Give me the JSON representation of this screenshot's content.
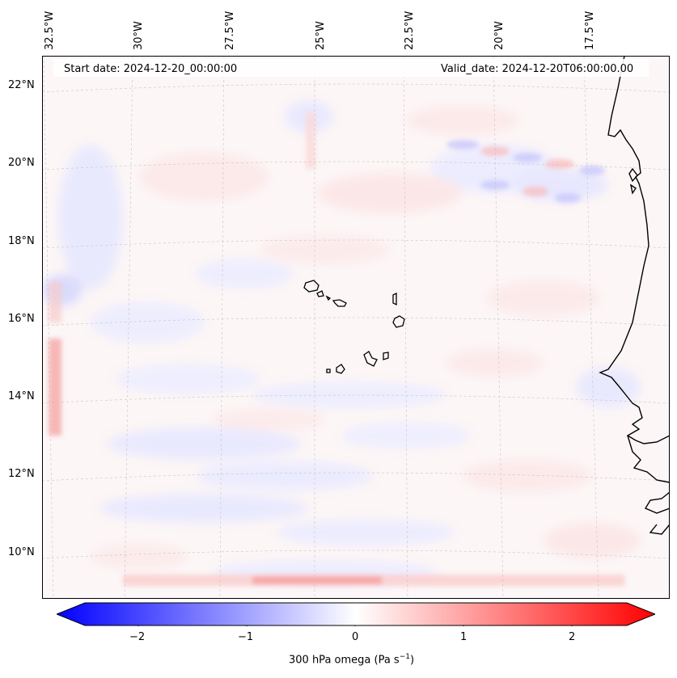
{
  "map": {
    "start_label": "Start date: 2024-12-20_00:00:00",
    "valid_label": "Valid_date: 2024-12-20T06:00:00.00",
    "lon_labels": [
      "32.5°W",
      "30°W",
      "27.5°W",
      "25°W",
      "22.5°W",
      "20°W",
      "17.5°W"
    ],
    "lat_labels": [
      "22°N",
      "20°N",
      "18°N",
      "16°N",
      "14°N",
      "12°N",
      "10°N"
    ],
    "coast_color": "#000000",
    "grid_color": "#bbbbbb"
  },
  "colorbar": {
    "ticks": [
      "−2",
      "−1",
      "0",
      "1",
      "2"
    ],
    "label_main": "300 hPa omega (Pa s",
    "label_sup": "−1",
    "label_tail": ")",
    "neg_color": "#0000ff",
    "pos_color": "#ff0000"
  }
}
